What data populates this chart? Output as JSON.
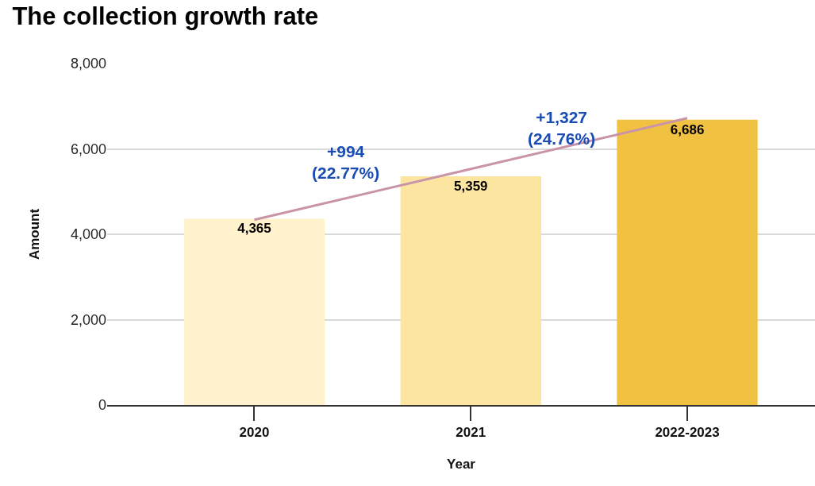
{
  "chart_data": {
    "type": "bar",
    "title": "The collection growth rate",
    "xlabel": "Year",
    "ylabel": "Amount",
    "categories": [
      "2020",
      "2021",
      "2022-2023"
    ],
    "values": [
      4365,
      5359,
      6686
    ],
    "colors": [
      "#fff2cc",
      "#fce5a0",
      "#f1c242"
    ],
    "value_labels": [
      "4,365",
      "5,359",
      "6,686"
    ],
    "series": [
      {
        "type": "line",
        "color": "#c994a8",
        "values": [
          4340,
          5530,
          6720
        ]
      }
    ],
    "ylim": [
      0,
      8000
    ],
    "yticks": [
      {
        "value": 0,
        "label": "0"
      },
      {
        "value": 2000,
        "label": "2,000"
      },
      {
        "value": 4000,
        "label": "4,000"
      },
      {
        "value": 6000,
        "label": "6,000"
      },
      {
        "value": 8000,
        "label": "8,000"
      }
    ],
    "grid": "y",
    "annotations": [
      "+994\n(22.77%)",
      "+1,327\n(24.76%)"
    ]
  }
}
